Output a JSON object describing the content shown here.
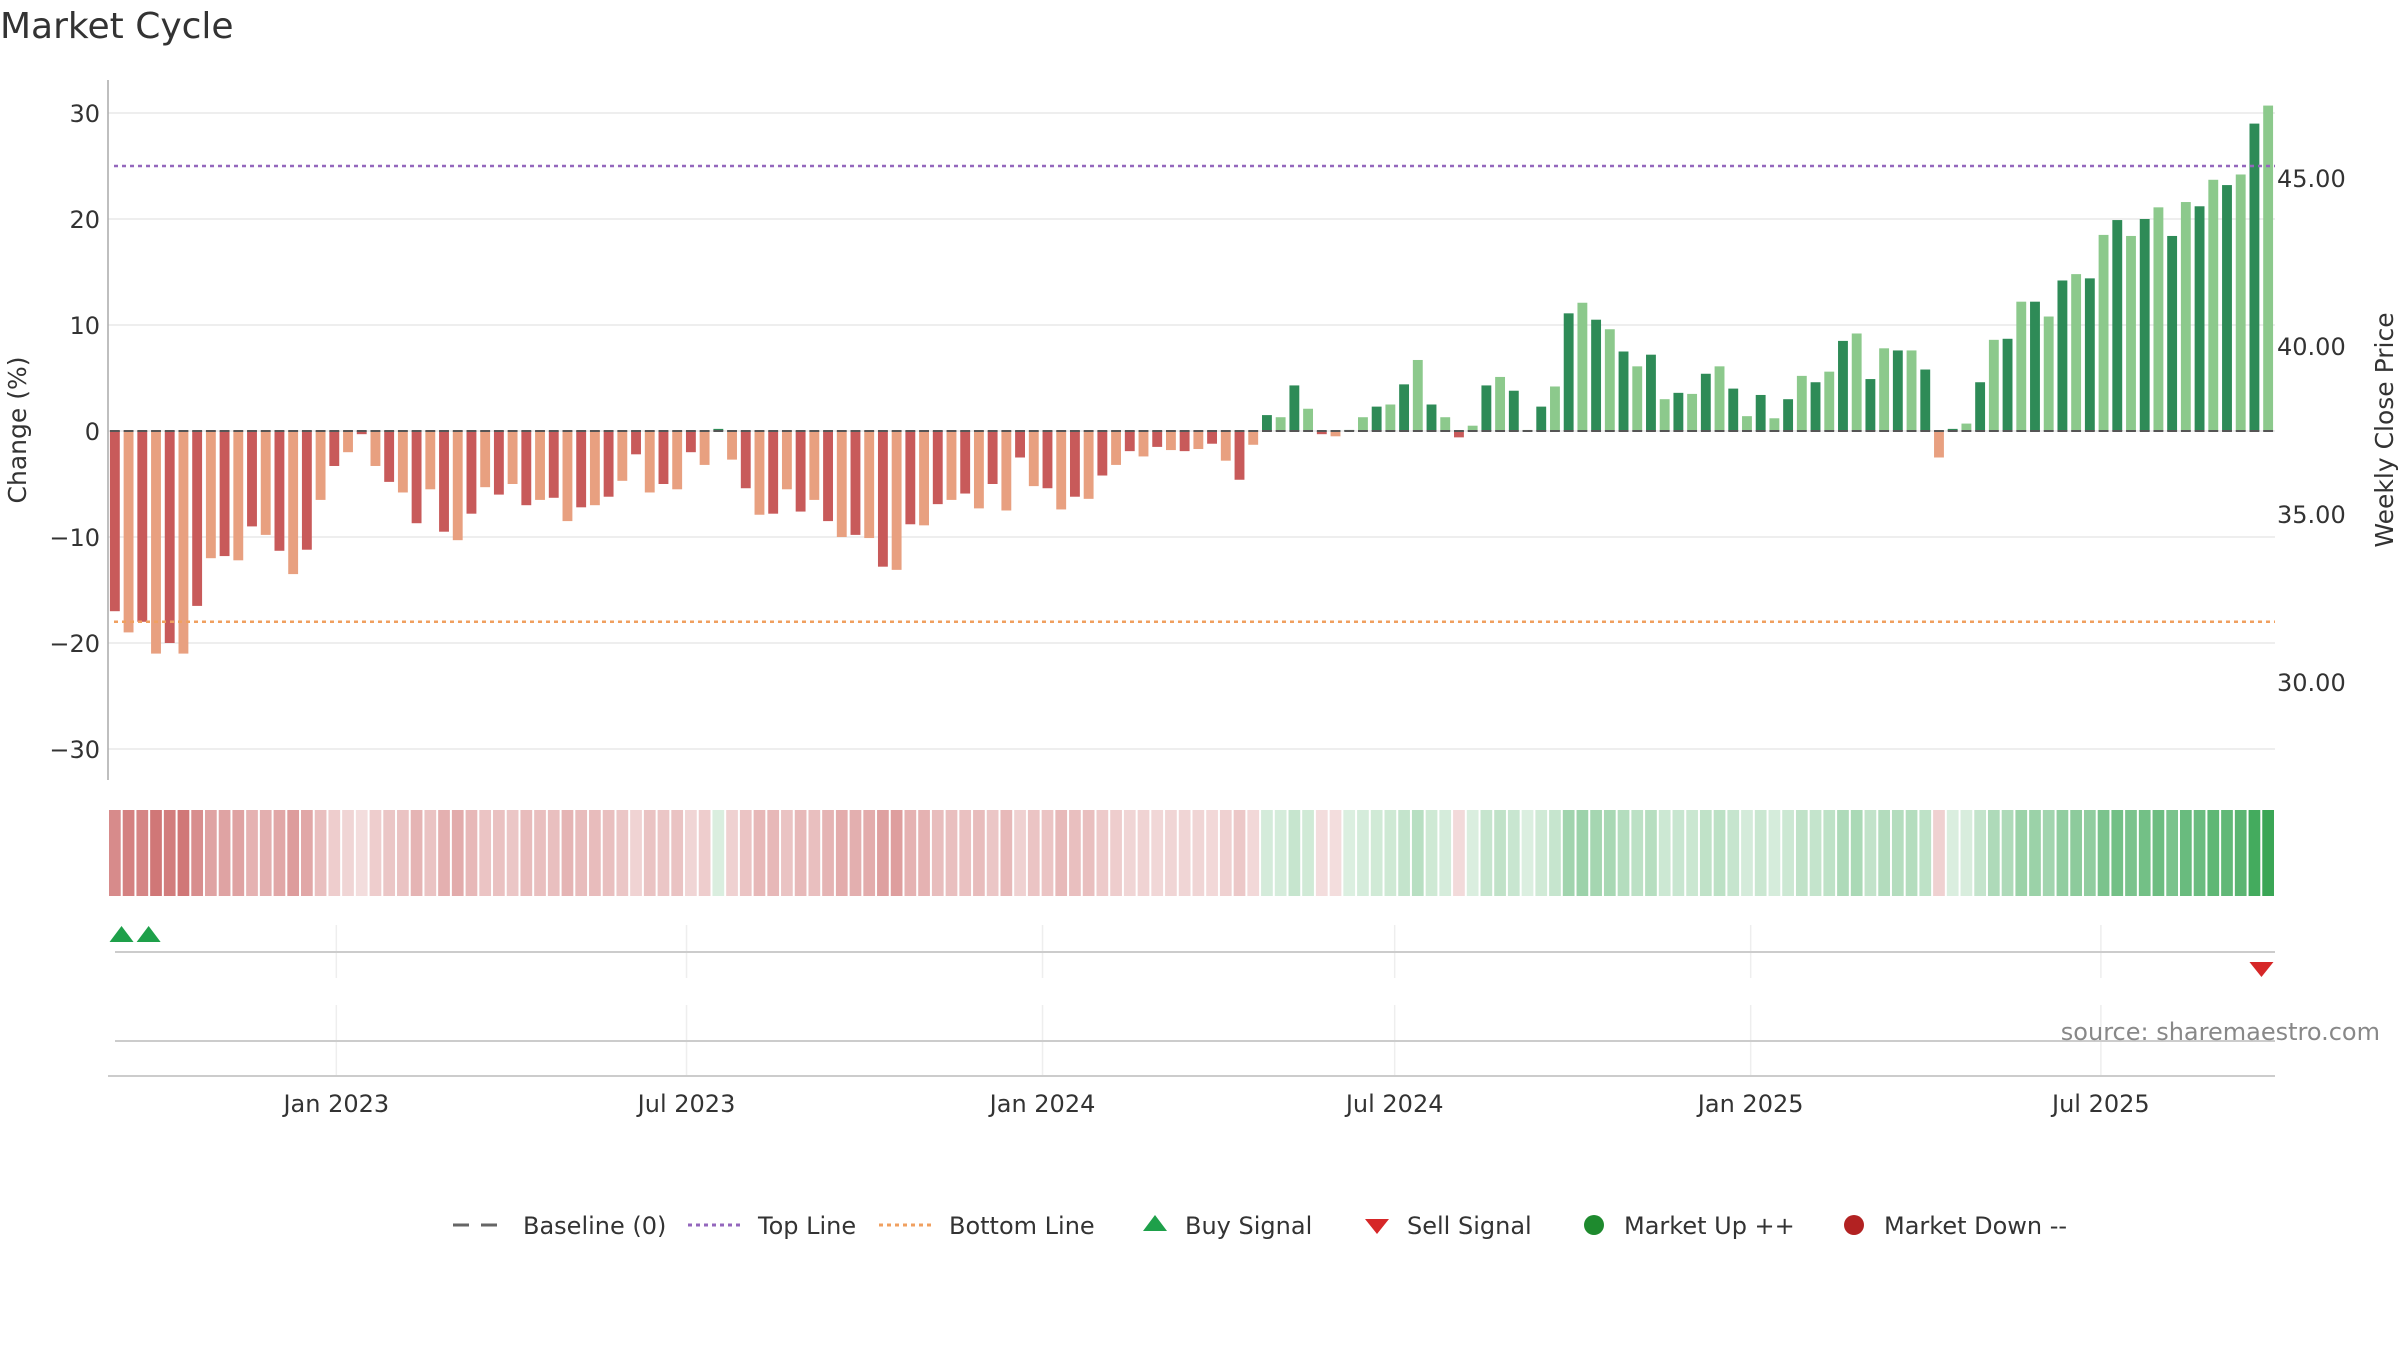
{
  "chart_data": {
    "type": "bar",
    "title": "Market Cycle",
    "ylabel_left": "Change (%)",
    "ylabel_right": "Weekly Close Price",
    "ylim": [
      -33,
      33
    ],
    "yticks": [
      -30,
      -20,
      -10,
      0,
      10,
      20,
      30
    ],
    "ytick_labels": [
      "−30",
      "−20",
      "−10",
      "0",
      "10",
      "20",
      "30"
    ],
    "right_yticks": [
      30,
      35,
      40,
      45
    ],
    "right_ytick_labels": [
      "30.00",
      "35.00",
      "40.00",
      "45.00"
    ],
    "top_line": 25,
    "bottom_line": -18,
    "baseline": 0,
    "x_start": "2022-09-05",
    "x_end": "2025-09-29",
    "x_tick_labels": [
      {
        "date": "2023-01-01",
        "label": "Jan 2023"
      },
      {
        "date": "2023-07-01",
        "label": "Jul 2023"
      },
      {
        "date": "2024-01-01",
        "label": "Jan 2024"
      },
      {
        "date": "2024-07-01",
        "label": "Jul 2024"
      },
      {
        "date": "2025-01-01",
        "label": "Jan 2025"
      },
      {
        "date": "2025-07-01",
        "label": "Jul 2025"
      }
    ],
    "weekly_change_values": [
      -17,
      -19,
      -18,
      -21,
      -20,
      -21,
      -16.5,
      -12,
      -11.8,
      -12.2,
      -9,
      -9.8,
      -11.3,
      -13.5,
      -11.2,
      -6.5,
      -3.3,
      -2,
      -0.3,
      -3.3,
      -4.8,
      -5.8,
      -8.7,
      -5.5,
      -9.5,
      -10.3,
      -7.8,
      -5.3,
      -6,
      -5,
      -7,
      -6.5,
      -6.3,
      -8.5,
      -7.2,
      -7,
      -6.2,
      -4.7,
      -2.2,
      -5.8,
      -5,
      -5.5,
      -2,
      -3.2,
      0.2,
      -2.7,
      -5.4,
      -7.9,
      -7.8,
      -5.5,
      -7.6,
      -6.5,
      -8.5,
      -10,
      -9.8,
      -10.1,
      -12.8,
      -13.1,
      -8.8,
      -8.9,
      -6.9,
      -6.5,
      -5.9,
      -7.3,
      -5,
      -7.5,
      -2.5,
      -5.2,
      -5.4,
      -7.4,
      -6.2,
      -6.4,
      -4.2,
      -3.2,
      -1.9,
      -2.4,
      -1.5,
      -1.8,
      -1.9,
      -1.7,
      -1.2,
      -2.8,
      -4.6,
      -1.3,
      1.5,
      1.3,
      4.3,
      2.1,
      -0.3,
      -0.5,
      0.1,
      1.3,
      2.3,
      2.5,
      4.4,
      6.7,
      2.5,
      1.3,
      -0.6,
      0.5,
      4.3,
      5.1,
      3.8,
      0.1,
      2.3,
      4.2,
      11.1,
      12.1,
      10.5,
      9.6,
      7.5,
      6.1,
      7.2,
      3,
      3.6,
      3.5,
      5.4,
      6.1,
      4,
      1.4,
      3.4,
      1.2,
      3,
      5.2,
      4.6,
      5.6,
      8.5,
      9.2,
      4.9,
      7.8,
      7.6,
      7.6,
      5.8,
      -2.5,
      0.2,
      0.7,
      4.6,
      8.6,
      8.7,
      12.2,
      12.2,
      10.8,
      14.2,
      14.8,
      14.4,
      18.5,
      19.9,
      18.4,
      20,
      21.1,
      18.4,
      21.6,
      21.2,
      23.7,
      23.2,
      24.2,
      29,
      30.7
    ],
    "signals": [
      {
        "type": "buy",
        "date": "2022-09-12"
      },
      {
        "type": "buy",
        "date": "2022-09-26"
      },
      {
        "type": "sell",
        "date": "2025-09-22"
      }
    ],
    "legend": [
      {
        "label": "Baseline (0)",
        "symbol": "dashed-line",
        "color": "#666666"
      },
      {
        "label": "Top Line",
        "symbol": "dotted-line",
        "color": "#9467bd"
      },
      {
        "label": "Bottom Line",
        "symbol": "dotted-line",
        "color": "#f0a060"
      },
      {
        "label": "Buy Signal",
        "symbol": "triangle-up",
        "color": "#1ea04a"
      },
      {
        "label": "Sell Signal",
        "symbol": "triangle-down",
        "color": "#d62728"
      },
      {
        "label": "Market Up ++",
        "symbol": "circle",
        "color": "#1e8a2e"
      },
      {
        "label": "Market Down --",
        "symbol": "circle",
        "color": "#b22222"
      }
    ],
    "colors": {
      "up_strong": "#2e8b57",
      "up_light": "#8cc98c",
      "down_strong": "#c85a5a",
      "down_light": "#e8a080",
      "heat_up": "#3aa655",
      "heat_down": "#c04848",
      "grid": "#e8e8e8",
      "axis": "#aaaaaa"
    },
    "grid": true,
    "legend_position": "bottom",
    "source": "source: sharemaestro.com"
  }
}
